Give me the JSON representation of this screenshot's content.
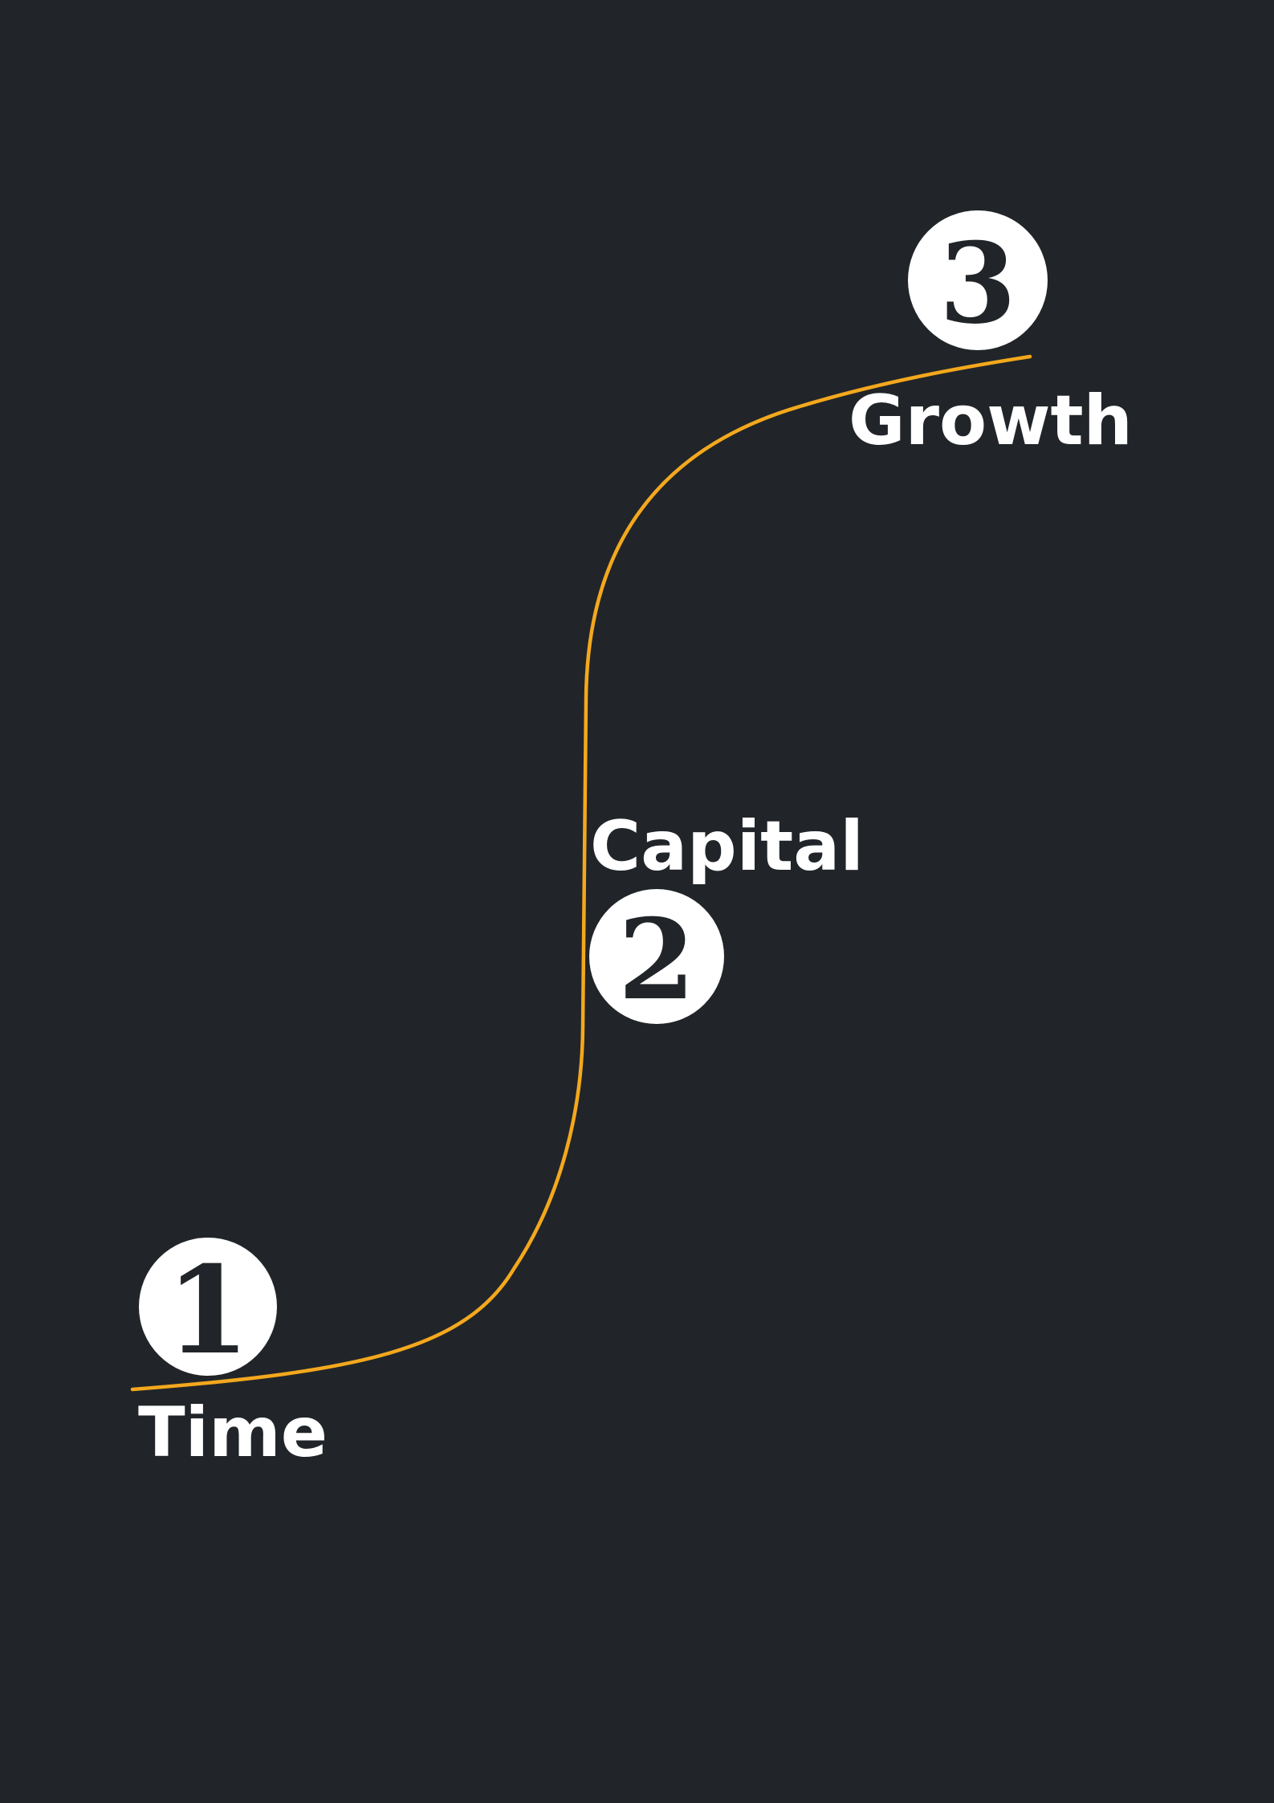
{
  "diagram": {
    "background_color": "#212529",
    "curve_color": "#F4A81D",
    "badge_color": "#FFFFFF",
    "badge_text_color": "#212529",
    "label_color": "#FFFFFF",
    "stages": [
      {
        "number": "1",
        "label": "Time"
      },
      {
        "number": "2",
        "label": "Capital"
      },
      {
        "number": "3",
        "label": "Growth"
      }
    ]
  }
}
